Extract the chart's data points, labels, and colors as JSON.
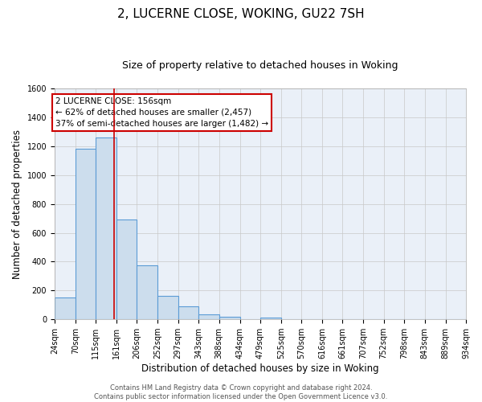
{
  "title": "2, LUCERNE CLOSE, WOKING, GU22 7SH",
  "subtitle": "Size of property relative to detached houses in Woking",
  "xlabel": "Distribution of detached houses by size in Woking",
  "ylabel": "Number of detached properties",
  "bin_edges": [
    24,
    70,
    115,
    161,
    206,
    252,
    297,
    343,
    388,
    434,
    479,
    525,
    570,
    616,
    661,
    707,
    752,
    798,
    843,
    889,
    934
  ],
  "bar_heights": [
    150,
    1180,
    1260,
    690,
    375,
    165,
    90,
    35,
    20,
    0,
    10,
    0,
    0,
    0,
    0,
    0,
    0,
    0,
    0,
    0
  ],
  "bar_facecolor": "#ccdded",
  "bar_edgecolor": "#5b9bd5",
  "bar_linewidth": 0.8,
  "grid_color": "#c8c8c8",
  "bg_color": "#eaf0f8",
  "vline_x": 156,
  "vline_color": "#cc0000",
  "vline_lw": 1.2,
  "annotation_line1": "2 LUCERNE CLOSE: 156sqm",
  "annotation_line2": "← 62% of detached houses are smaller (2,457)",
  "annotation_line3": "37% of semi-detached houses are larger (1,482) →",
  "ylim": [
    0,
    1600
  ],
  "yticks": [
    0,
    200,
    400,
    600,
    800,
    1000,
    1200,
    1400,
    1600
  ],
  "footer_text": "Contains HM Land Registry data © Crown copyright and database right 2024.\nContains public sector information licensed under the Open Government Licence v3.0.",
  "title_fontsize": 11,
  "subtitle_fontsize": 9,
  "xlabel_fontsize": 8.5,
  "ylabel_fontsize": 8.5,
  "tick_fontsize": 7,
  "annotation_fontsize": 7.5,
  "footer_fontsize": 6
}
